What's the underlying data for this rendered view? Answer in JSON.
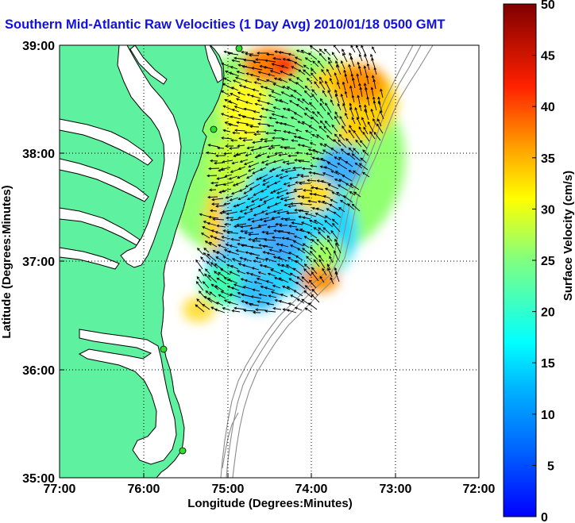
{
  "title": "Southern Mid-Atlantic Raw Velocities (1 Day Avg) 2010/01/18 0500 GMT",
  "map": {
    "xlabel": "Longitude (Degrees:Minutes)",
    "ylabel": "Latitude (Degrees:Minutes)",
    "x_ticks": [
      "77:00",
      "76:00",
      "75:00",
      "74:00",
      "73:00",
      "72:00"
    ],
    "y_ticks": [
      "39:00",
      "38:00",
      "37:00",
      "36:00",
      "35:00"
    ],
    "lon_range": [
      -77,
      -72
    ],
    "lat_range": [
      35,
      39
    ],
    "grid": "dotted",
    "colors": {
      "land": "#5ef2a0",
      "water": "#ffffff",
      "coastline": "#000000",
      "bathymetry": "#8c8c8c",
      "stations": "#2ee02e",
      "arrows": "#000000"
    }
  },
  "colorbar": {
    "label": "Surface Velocity (cm/s)",
    "ticks": [
      "50",
      "45",
      "40",
      "35",
      "30",
      "25",
      "20",
      "15",
      "10",
      "5",
      "0"
    ],
    "range": [
      0,
      50
    ],
    "colormap": "jet"
  }
}
